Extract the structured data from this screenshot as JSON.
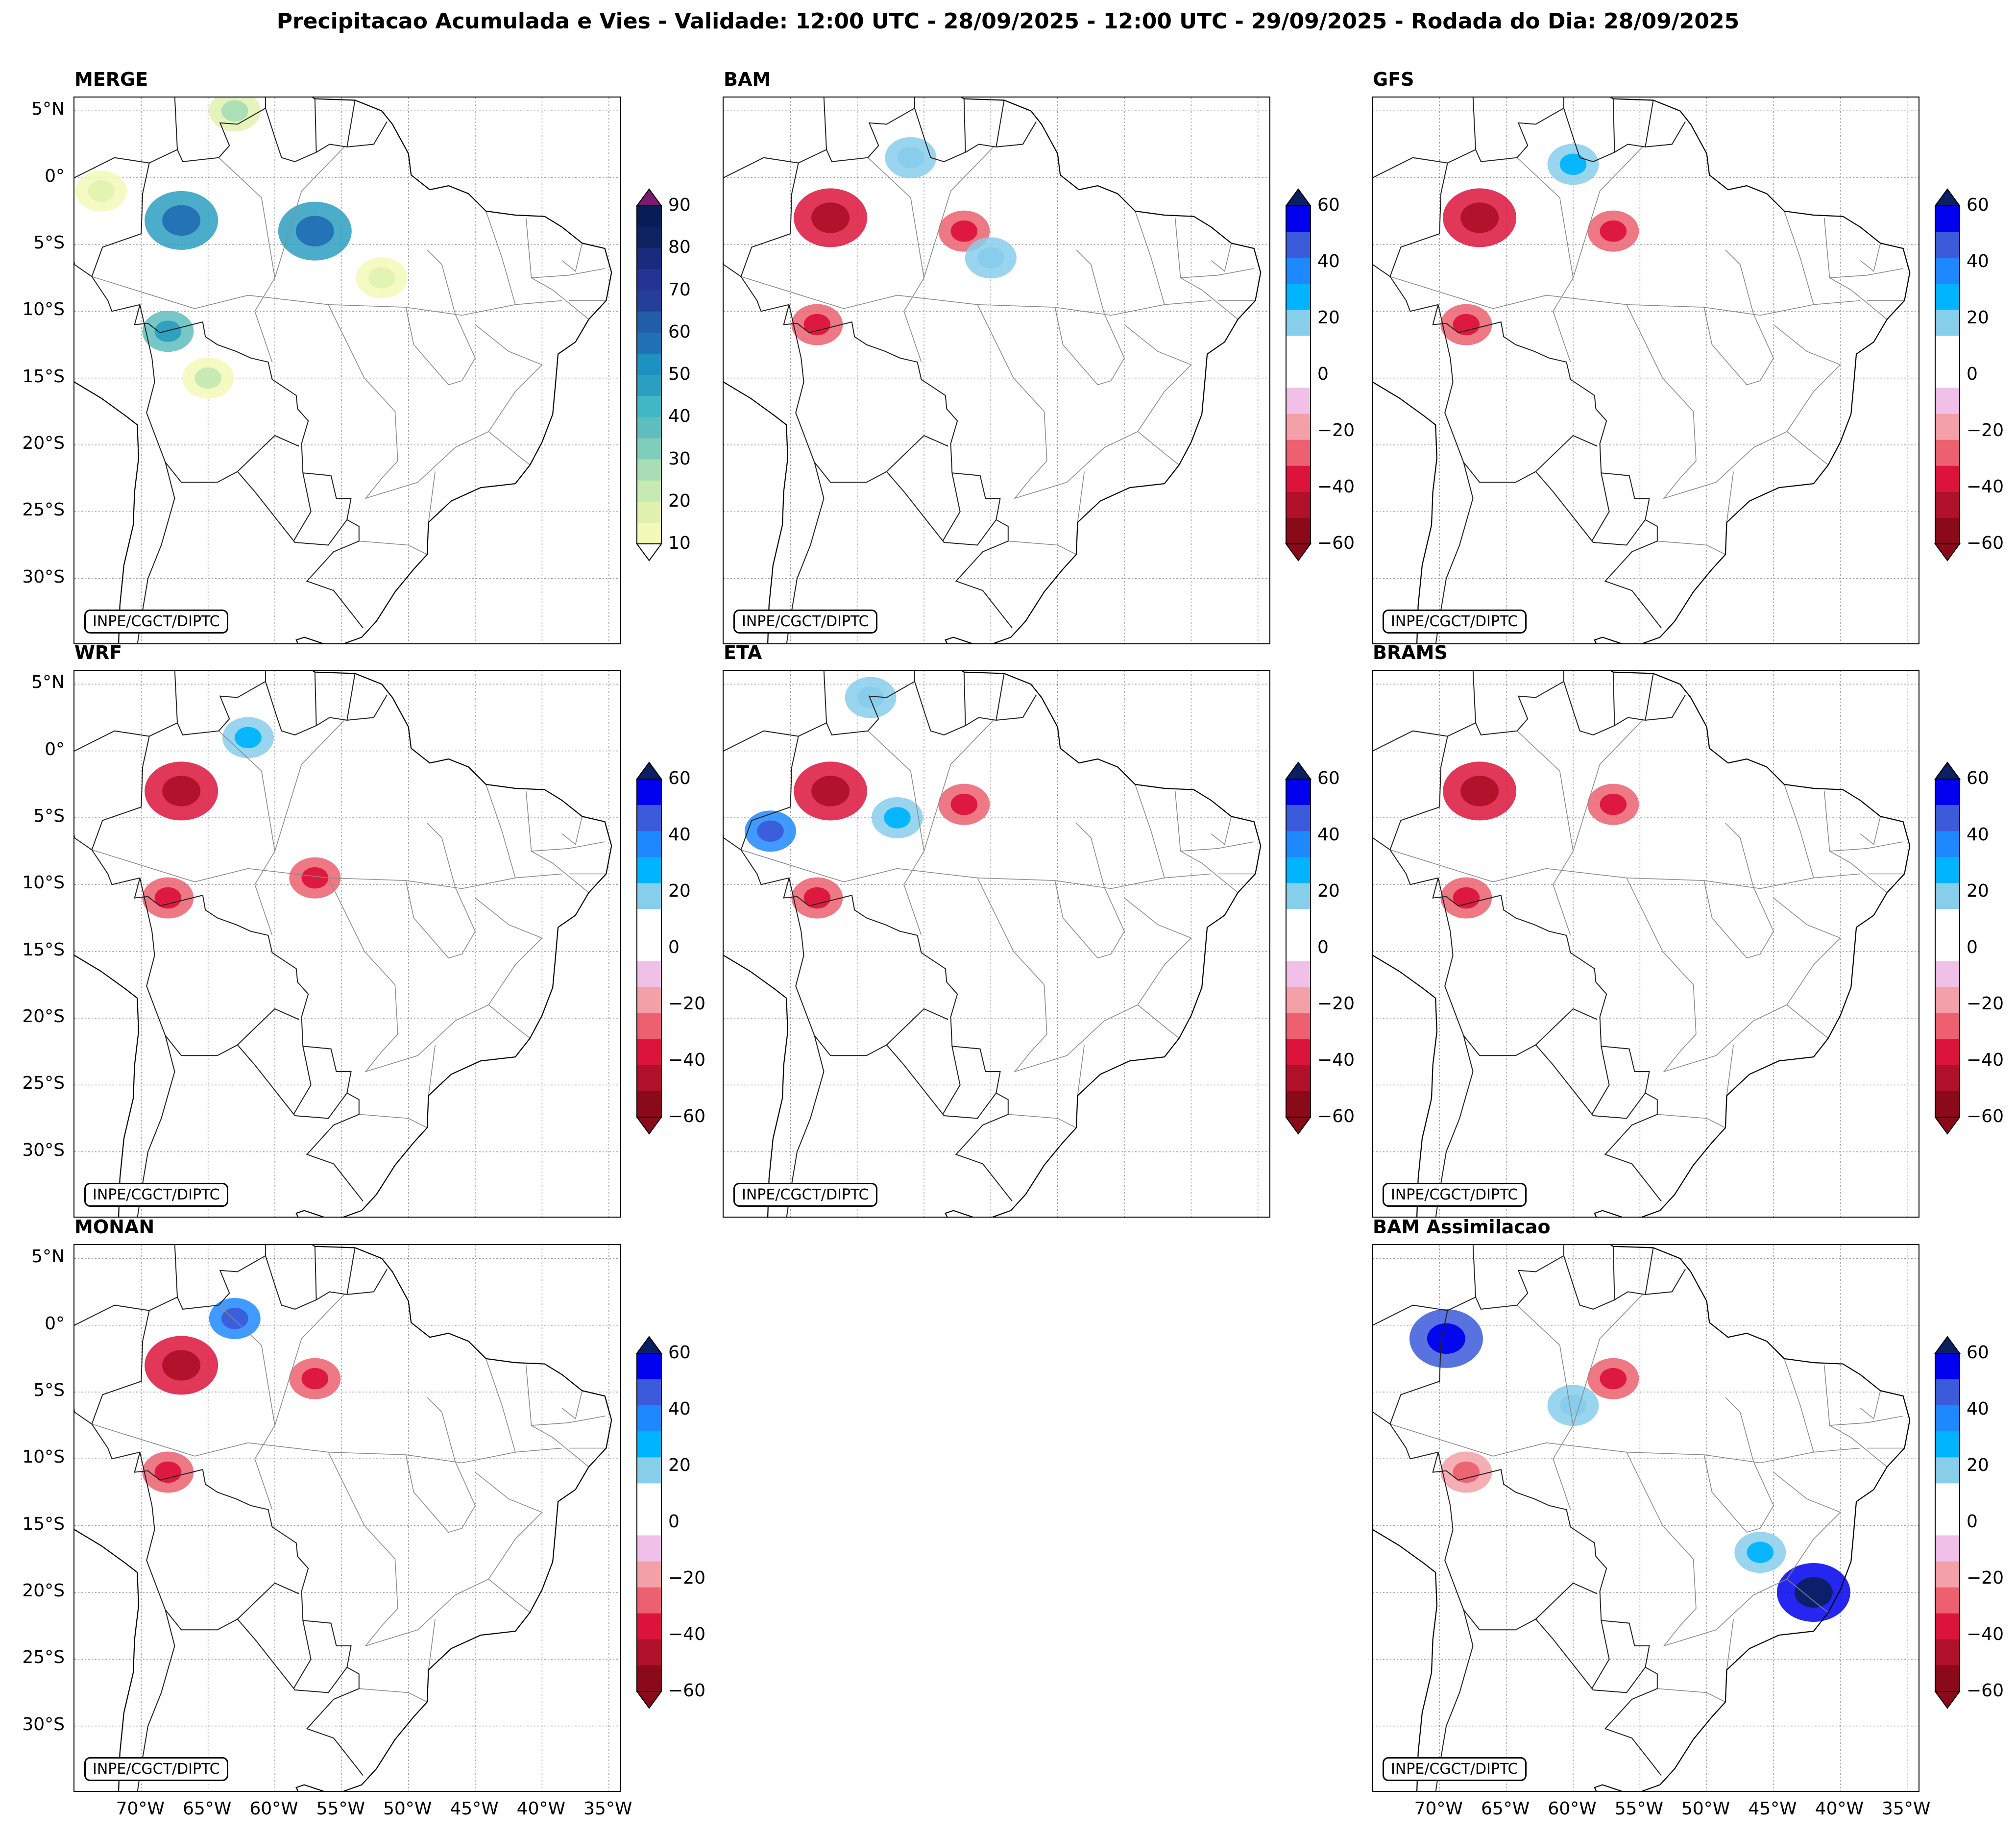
{
  "title": "Precipitacao Acumulada e Vies - Validade: 12:00 UTC - 28/09/2025 - 12:00 UTC - 29/09/2025 - Rodada do Dia: 28/09/2025",
  "credit": "INPE/CGCT/DIPTC",
  "lat_ticks": [
    "5°N",
    "0°",
    "5°S",
    "10°S",
    "15°S",
    "20°S",
    "25°S",
    "30°S"
  ],
  "lon_ticks": [
    "70°W",
    "65°W",
    "60°W",
    "55°W",
    "50°W",
    "45°W",
    "40°W",
    "35°W"
  ],
  "panels": [
    {
      "name": "MERGE",
      "kind": "precip"
    },
    {
      "name": "BAM",
      "kind": "bias"
    },
    {
      "name": "GFS",
      "kind": "bias"
    },
    {
      "name": "WRF",
      "kind": "bias"
    },
    {
      "name": "ETA",
      "kind": "bias"
    },
    {
      "name": "BRAMS",
      "kind": "bias"
    },
    {
      "name": "MONAN",
      "kind": "bias"
    },
    {
      "name": "BAM Assimilacao",
      "kind": "bias"
    }
  ],
  "chart_data": {
    "type": "heatmap",
    "precip_colorbar": {
      "ticks": [
        "10",
        "20",
        "30",
        "40",
        "50",
        "60",
        "70",
        "80",
        "90"
      ],
      "levels": [
        10,
        15,
        20,
        25,
        30,
        35,
        40,
        45,
        50,
        55,
        60,
        65,
        70,
        75,
        80,
        85,
        90
      ],
      "colors": [
        "#f3f9b7",
        "#e1f2b0",
        "#c7e9b4",
        "#a8ddb5",
        "#7fcdbb",
        "#5fbdbd",
        "#41b6c4",
        "#2c9fc0",
        "#1d91c0",
        "#2270b5",
        "#225ea8",
        "#253f99",
        "#253494",
        "#1a2b7e",
        "#0f2363",
        "#081d58"
      ],
      "extend_max_color": "#7b1a6e"
    },
    "bias_colorbar": {
      "ticks": [
        "60",
        "40",
        "20",
        "0",
        "−20",
        "−40",
        "−60"
      ],
      "levels": [
        -60,
        -50,
        -40,
        -30,
        -20,
        -10,
        10,
        20,
        30,
        40,
        50,
        60
      ],
      "colors_top_down": [
        "#0000ee",
        "#3b5bdb",
        "#1e88ff",
        "#00b4ff",
        "#87ceeb",
        "#ffffff",
        "#ffffff",
        "#f0c0e8",
        "#f4a0a8",
        "#ec6070",
        "#dc143c",
        "#b0102a",
        "#8b0a1a"
      ],
      "extend_max_color": "#0b1f63",
      "extend_min_color": "#8b0a1a"
    },
    "blobs": [
      {
        "panel": 0,
        "lon": -67,
        "lat": -3.2,
        "value": 55
      },
      {
        "panel": 0,
        "lon": -57,
        "lat": -4,
        "value": 55
      },
      {
        "panel": 0,
        "lon": -68,
        "lat": -11.5,
        "value": 45
      },
      {
        "panel": 0,
        "lon": -63,
        "lat": 5,
        "value": 25
      },
      {
        "panel": 0,
        "lon": -73,
        "lat": -1,
        "value": 15
      },
      {
        "panel": 0,
        "lon": -52,
        "lat": -7.5,
        "value": 15
      },
      {
        "panel": 0,
        "lon": -65,
        "lat": -15,
        "value": 20
      },
      {
        "panel": 1,
        "lon": -67,
        "lat": -3,
        "value": -50
      },
      {
        "panel": 1,
        "lon": -57,
        "lat": -4,
        "value": -45
      },
      {
        "panel": 1,
        "lon": -68,
        "lat": -11,
        "value": -40
      },
      {
        "panel": 1,
        "lon": -61,
        "lat": 1.5,
        "value": 15
      },
      {
        "panel": 1,
        "lon": -55,
        "lat": -6,
        "value": 15
      },
      {
        "panel": 2,
        "lon": -67,
        "lat": -3,
        "value": -50
      },
      {
        "panel": 2,
        "lon": -57,
        "lat": -4,
        "value": -45
      },
      {
        "panel": 2,
        "lon": -68,
        "lat": -11,
        "value": -40
      },
      {
        "panel": 2,
        "lon": -60,
        "lat": 1,
        "value": 25
      },
      {
        "panel": 3,
        "lon": -67,
        "lat": -3,
        "value": -50
      },
      {
        "panel": 3,
        "lon": -57,
        "lat": -9.5,
        "value": -45
      },
      {
        "panel": 3,
        "lon": -68,
        "lat": -11,
        "value": -40
      },
      {
        "panel": 3,
        "lon": -62,
        "lat": 1,
        "value": 25
      },
      {
        "panel": 4,
        "lon": -67,
        "lat": -3,
        "value": -50
      },
      {
        "panel": 4,
        "lon": -57,
        "lat": -4,
        "value": -45
      },
      {
        "panel": 4,
        "lon": -68,
        "lat": -11,
        "value": -40
      },
      {
        "panel": 4,
        "lon": -71.5,
        "lat": -6,
        "value": 40
      },
      {
        "panel": 4,
        "lon": -62,
        "lat": -5,
        "value": 20
      },
      {
        "panel": 4,
        "lon": -64,
        "lat": 4,
        "value": 15
      },
      {
        "panel": 5,
        "lon": -67,
        "lat": -3,
        "value": -50
      },
      {
        "panel": 5,
        "lon": -57,
        "lat": -4,
        "value": -45
      },
      {
        "panel": 5,
        "lon": -68,
        "lat": -11,
        "value": -40
      },
      {
        "panel": 6,
        "lon": -67,
        "lat": -3,
        "value": -50
      },
      {
        "panel": 6,
        "lon": -57,
        "lat": -4,
        "value": -45
      },
      {
        "panel": 6,
        "lon": -68,
        "lat": -11,
        "value": -40
      },
      {
        "panel": 6,
        "lon": -63,
        "lat": 0.5,
        "value": 40
      },
      {
        "panel": 7,
        "lon": -69.5,
        "lat": -1,
        "value": 55
      },
      {
        "panel": 7,
        "lon": -42,
        "lat": -20,
        "value": 65
      },
      {
        "panel": 7,
        "lon": -46,
        "lat": -17,
        "value": 25
      },
      {
        "panel": 7,
        "lon": -60,
        "lat": -6,
        "value": 15
      },
      {
        "panel": 7,
        "lon": -57,
        "lat": -4,
        "value": -40
      },
      {
        "panel": 7,
        "lon": -68,
        "lat": -11,
        "value": -30
      }
    ]
  }
}
